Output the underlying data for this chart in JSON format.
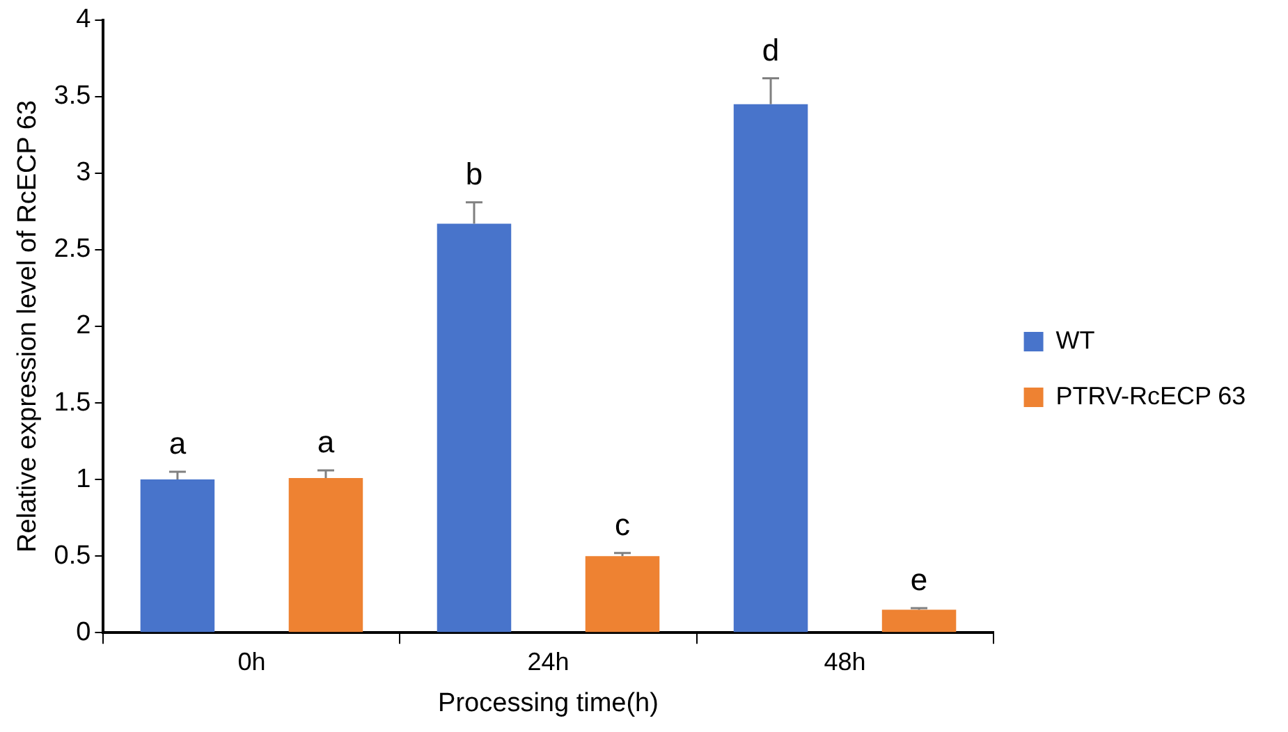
{
  "chart_data": {
    "type": "bar",
    "xlabel": "Processing time(h)",
    "ylabel": "Relative expression level of RcECP 63",
    "categories": [
      "0h",
      "24h",
      "48h"
    ],
    "series": [
      {
        "name": "WT",
        "color": "#4874cb",
        "values": [
          1.0,
          2.67,
          3.45
        ],
        "errors": [
          0.05,
          0.14,
          0.17
        ],
        "value_labels": [
          "a",
          "b",
          "d"
        ]
      },
      {
        "name": "PTRV-RcECP 63",
        "color": "#ee8232",
        "values": [
          1.01,
          0.5,
          0.15
        ],
        "errors": [
          0.05,
          0.02,
          0.01
        ],
        "value_labels": [
          "a",
          "c",
          "e"
        ]
      }
    ],
    "ylim": [
      0,
      4
    ],
    "yticks": [
      0,
      0.5,
      1,
      1.5,
      2,
      2.5,
      3,
      3.5,
      4
    ],
    "grid": false,
    "legend": "right"
  }
}
